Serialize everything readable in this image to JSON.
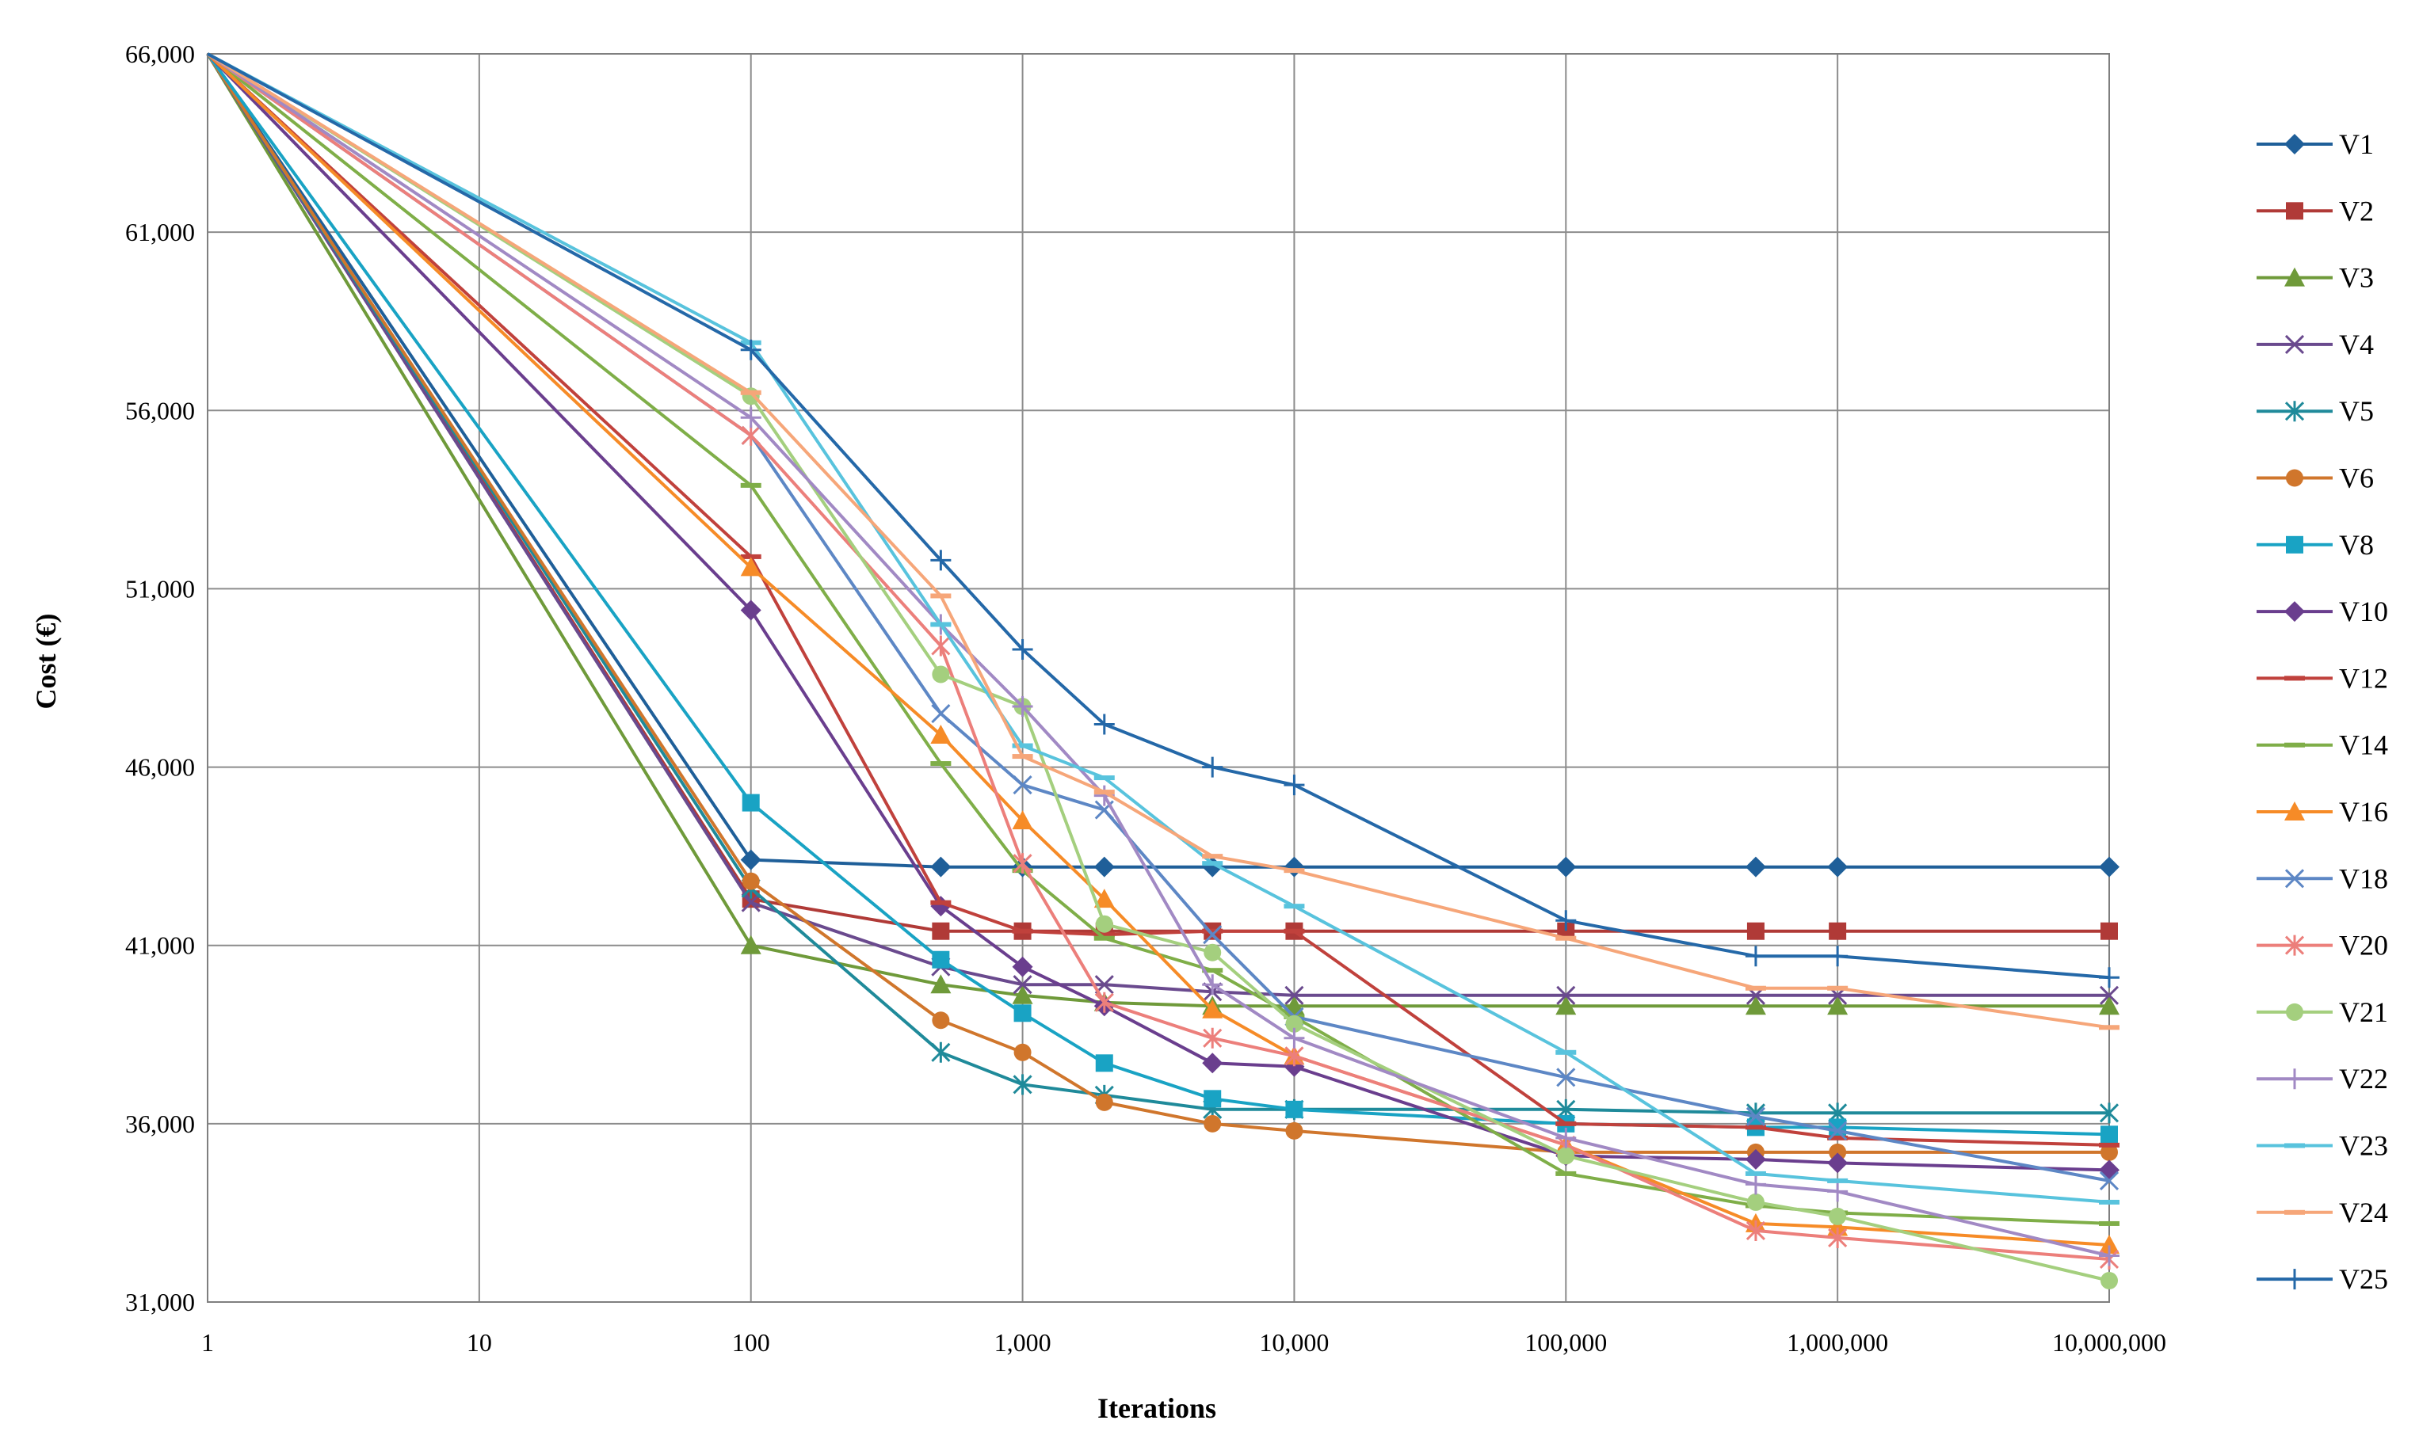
{
  "chart_data": {
    "type": "line",
    "title": "",
    "xlabel": "Iterations",
    "ylabel": "Cost (€)",
    "xscale": "log",
    "xlim": [
      1,
      10000000
    ],
    "ylim": [
      31000,
      66000
    ],
    "grid": true,
    "legend_position": "right",
    "x": [
      1,
      100,
      500,
      1000,
      2000,
      5000,
      10000,
      100000,
      500000,
      1000000,
      10000000
    ],
    "x_tick_values": [
      1,
      10,
      100,
      1000,
      10000,
      100000,
      1000000,
      10000000
    ],
    "x_tick_labels": [
      "1",
      "10",
      "100",
      "1,000",
      "10,000",
      "100,000",
      "1,000,000",
      "10,000,000"
    ],
    "y_tick_values": [
      31000,
      36000,
      41000,
      46000,
      51000,
      56000,
      61000,
      66000
    ],
    "y_tick_labels": [
      "31,000",
      "36,000",
      "41,000",
      "46,000",
      "51,000",
      "56,000",
      "61,000",
      "66,000"
    ],
    "series": [
      {
        "name": "V1",
        "color": "#1f5f99",
        "marker": "diamond",
        "values": [
          66000,
          43400,
          43200,
          43200,
          43200,
          43200,
          43200,
          43200,
          43200,
          43200,
          43200
        ]
      },
      {
        "name": "V2",
        "color": "#b03a37",
        "marker": "square",
        "values": [
          66000,
          42300,
          41400,
          41400,
          41400,
          41400,
          41400,
          41400,
          41400,
          41400,
          41400
        ]
      },
      {
        "name": "V3",
        "color": "#6f9a3a",
        "marker": "triangle",
        "values": [
          66000,
          41000,
          39900,
          39600,
          39400,
          39300,
          39300,
          39300,
          39300,
          39300,
          39300
        ]
      },
      {
        "name": "V4",
        "color": "#6a4a8e",
        "marker": "x",
        "values": [
          66000,
          42200,
          40400,
          39900,
          39900,
          39700,
          39600,
          39600,
          39600,
          39600,
          39600
        ]
      },
      {
        "name": "V5",
        "color": "#1f8a9a",
        "marker": "star",
        "values": [
          66000,
          42600,
          38000,
          37100,
          36800,
          36400,
          36400,
          36400,
          36300,
          36300,
          36300
        ]
      },
      {
        "name": "V6",
        "color": "#d0762c",
        "marker": "circle",
        "values": [
          66000,
          42800,
          38900,
          38000,
          36600,
          36000,
          35800,
          35200,
          35200,
          35200,
          35200
        ]
      },
      {
        "name": "V8",
        "color": "#19a3c4",
        "marker": "square",
        "values": [
          66000,
          45000,
          40600,
          39100,
          37700,
          36700,
          36400,
          36000,
          35900,
          35900,
          35700
        ]
      },
      {
        "name": "V10",
        "color": "#6a3e8e",
        "marker": "diamond",
        "values": [
          66000,
          50400,
          42100,
          40400,
          39300,
          37700,
          37600,
          35100,
          35000,
          34900,
          34700
        ]
      },
      {
        "name": "V12",
        "color": "#c0413c",
        "marker": "dash",
        "values": [
          66000,
          51900,
          42200,
          41400,
          41300,
          41400,
          41400,
          36000,
          35900,
          35600,
          35400
        ]
      },
      {
        "name": "V14",
        "color": "#7fae48",
        "marker": "dash",
        "values": [
          66000,
          53900,
          46100,
          43100,
          41200,
          40300,
          39000,
          34600,
          33700,
          33500,
          33200
        ]
      },
      {
        "name": "V16",
        "color": "#f68b27",
        "marker": "triangle",
        "values": [
          66000,
          51600,
          46900,
          44500,
          42300,
          39200,
          37900,
          35400,
          33200,
          33100,
          32600
        ]
      },
      {
        "name": "V18",
        "color": "#5d87c5",
        "marker": "x",
        "values": [
          66000,
          55300,
          47500,
          45500,
          44800,
          41300,
          39000,
          37300,
          36200,
          35800,
          34400
        ]
      },
      {
        "name": "V20",
        "color": "#ec7f7b",
        "marker": "star",
        "values": [
          66000,
          55300,
          49400,
          43300,
          39400,
          38400,
          37900,
          35400,
          33000,
          32800,
          32200
        ]
      },
      {
        "name": "V21",
        "color": "#a4cf7e",
        "marker": "circle",
        "values": [
          66000,
          56400,
          48600,
          47700,
          41600,
          40800,
          38800,
          35100,
          33800,
          33400,
          31600
        ]
      },
      {
        "name": "V22",
        "color": "#a189c4",
        "marker": "plus",
        "values": [
          66000,
          55800,
          50000,
          47700,
          45200,
          39900,
          38400,
          35600,
          34300,
          34100,
          32300
        ]
      },
      {
        "name": "V23",
        "color": "#58c3dd",
        "marker": "dash",
        "values": [
          66000,
          57900,
          50000,
          46600,
          45700,
          43300,
          42100,
          38000,
          34600,
          34400,
          33800
        ]
      },
      {
        "name": "V24",
        "color": "#f6a679",
        "marker": "dash",
        "values": [
          66000,
          56500,
          50800,
          46300,
          45300,
          43500,
          43100,
          41200,
          39800,
          39800,
          38700
        ]
      },
      {
        "name": "V25",
        "color": "#2468a8",
        "marker": "plus",
        "values": [
          66000,
          57700,
          51800,
          49300,
          47200,
          46000,
          45500,
          41700,
          40700,
          40700,
          40100
        ]
      }
    ]
  }
}
